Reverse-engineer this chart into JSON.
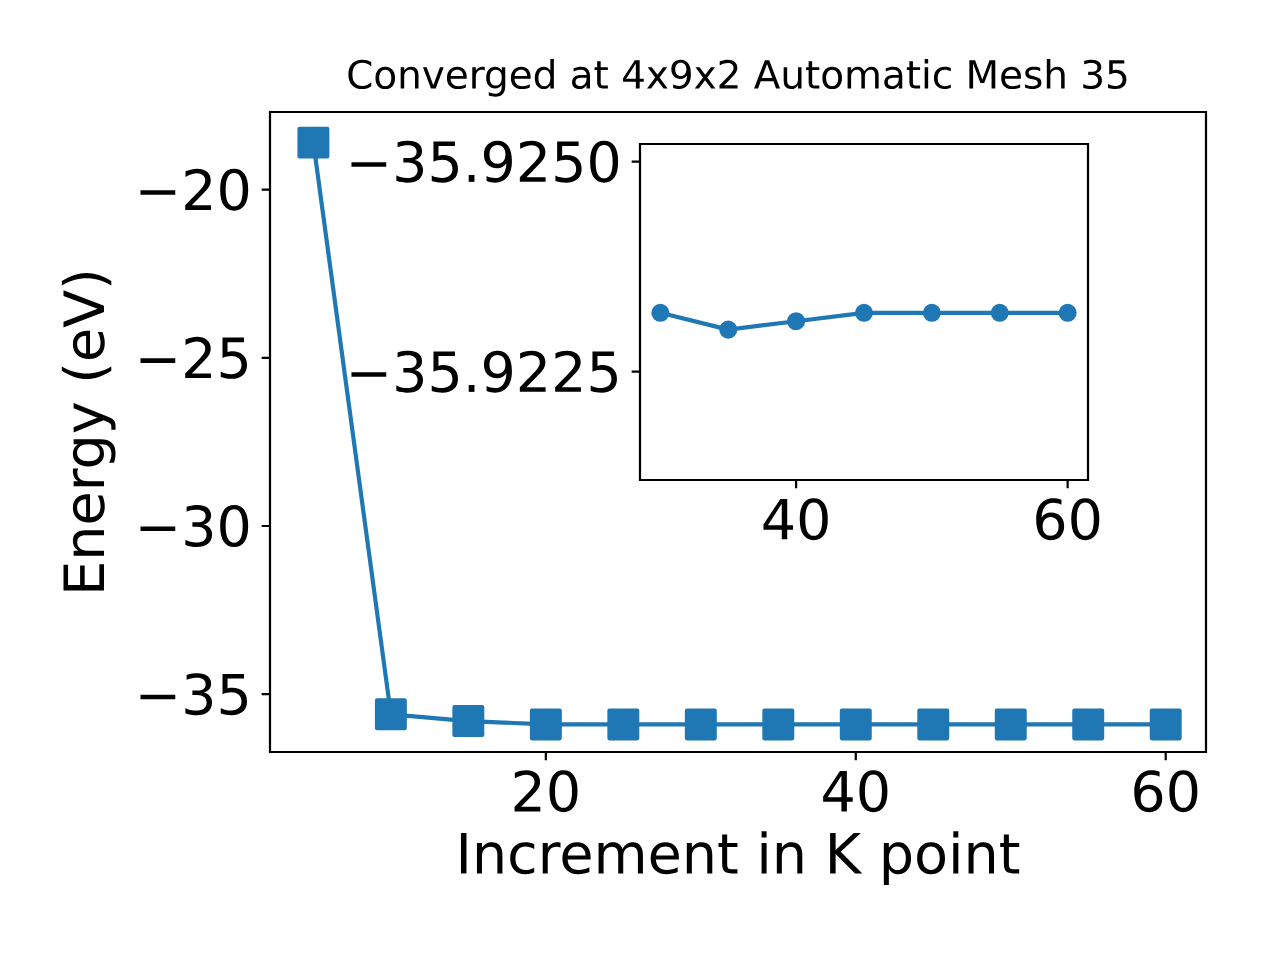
{
  "chart_data": [
    {
      "type": "line",
      "title": "Converged at 4x9x2 Automatic Mesh 35",
      "xlabel": "Increment in K point",
      "ylabel": "Energy (eV)",
      "color": "#1f77b4",
      "marker": "square",
      "x": [
        5,
        10,
        15,
        20,
        25,
        30,
        35,
        40,
        45,
        50,
        55,
        60
      ],
      "values": [
        -18.6,
        -35.6,
        -35.8,
        -35.9,
        -35.9,
        -35.9,
        -35.9,
        -35.9,
        -35.9,
        -35.9,
        -35.9,
        -35.9
      ],
      "xlim": [
        2.2,
        62.6
      ],
      "ylim": [
        -36.72,
        -17.69
      ],
      "xticks": [
        20,
        40,
        60
      ],
      "yticks": [
        {
          "value": -35,
          "label": "−35"
        },
        {
          "value": -30,
          "label": "−30"
        },
        {
          "value": -25,
          "label": "−25"
        },
        {
          "value": -20,
          "label": "−20"
        }
      ]
    },
    {
      "type": "line",
      "color": "#1f77b4",
      "marker": "circle",
      "x": [
        30,
        35,
        40,
        45,
        50,
        55,
        60
      ],
      "values": [
        -35.9232,
        -35.923,
        -35.9231,
        -35.9232,
        -35.9232,
        -35.9232,
        -35.9232
      ],
      "xlim": [
        28.5,
        61.5
      ],
      "ylim": [
        -35.92121,
        -35.92521
      ],
      "xticks": [
        40,
        60
      ],
      "yticks": [
        {
          "value": -35.925,
          "label": "−35.9250"
        },
        {
          "value": -35.9225,
          "label": "−35.9225"
        }
      ]
    }
  ]
}
